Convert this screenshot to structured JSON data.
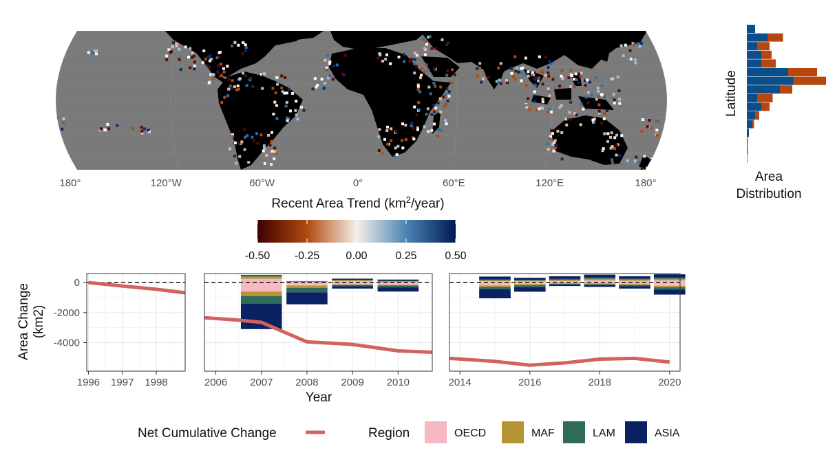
{
  "colors": {
    "ocean": "#7a7a7a",
    "land": "#000000",
    "net_line": "#d2625e",
    "OECD": "#f6b8c3",
    "MAF": "#b59532",
    "LAM": "#2e6b5b",
    "ASIA": "#0b2262",
    "hist_left": "#0b4e8a",
    "hist_right": "#b5470f",
    "panel_grid": "#ebebeb"
  },
  "chart_data": [
    {
      "type": "heatmap",
      "title": "Recent Area Trend (km2/year)",
      "title_main": "Recent Area Trend (km",
      "title_sup": "2",
      "title_end": "/year)",
      "longitude_labels": [
        "180°",
        "120°W",
        "60°W",
        "0°",
        "60°E",
        "120°E",
        "180°"
      ],
      "longitudes": [
        -180,
        -120,
        -60,
        0,
        60,
        120,
        180
      ],
      "colorbar": {
        "range": [
          -0.5,
          0.5
        ],
        "ticks": [
          -0.5,
          -0.25,
          0.0,
          0.25,
          0.5
        ],
        "tick_labels": [
          "-0.50",
          "-0.25",
          "0.00",
          "0.25",
          "0.50"
        ],
        "stops": [
          "#3d0000",
          "#b24a10",
          "#f5efe8",
          "#4b86b3",
          "#001a55"
        ]
      }
    },
    {
      "type": "bar",
      "orientation": "horizontal",
      "xlabel": "Area\nDistribution",
      "xlabel_lines": [
        "Area",
        "Distribution"
      ],
      "ylabel": "Latitude",
      "bins": [
        {
          "a": 0.08,
          "b": 0.0
        },
        {
          "a": 0.2,
          "b": 0.15
        },
        {
          "a": 0.1,
          "b": 0.12
        },
        {
          "a": 0.14,
          "b": 0.1
        },
        {
          "a": 0.14,
          "b": 0.14
        },
        {
          "a": 0.4,
          "b": 0.28
        },
        {
          "a": 0.45,
          "b": 0.4
        },
        {
          "a": 0.32,
          "b": 0.12
        },
        {
          "a": 0.1,
          "b": 0.15
        },
        {
          "a": 0.14,
          "b": 0.08
        },
        {
          "a": 0.08,
          "b": 0.04
        },
        {
          "a": 0.05,
          "b": 0.02
        },
        {
          "a": 0.02,
          "b": 0.0
        },
        {
          "a": 0.0,
          "b": 0.01
        },
        {
          "a": 0.0,
          "b": 0.01
        },
        {
          "a": 0.0,
          "b": 0.005
        }
      ]
    },
    {
      "type": "bar",
      "stacked": true,
      "xlabel": "Year",
      "ylabel": "Area Change\n(km2)",
      "ylabel_lines": [
        "Area Change",
        "(km2)"
      ],
      "ylim": [
        -5900,
        600
      ],
      "y_ticks": [
        0,
        -2000,
        -4000
      ],
      "y_tick_labels": [
        "0",
        "-2000",
        "-4000"
      ],
      "panels": [
        {
          "xlim": [
            1995.95,
            1998.85
          ],
          "x_ticks": [
            1996,
            1997,
            1998
          ],
          "x_tick_labels": [
            "1996",
            "1997",
            "1998"
          ],
          "bars": [],
          "net_line": {
            "x": [
              1996,
              1997,
              1998,
              1998.85
            ],
            "y": [
              0,
              -230,
              -450,
              -680
            ]
          }
        },
        {
          "xlim": [
            2005.75,
            2010.75
          ],
          "x_ticks": [
            2006,
            2007,
            2008,
            2009,
            2010
          ],
          "x_tick_labels": [
            "2006",
            "2007",
            "2008",
            "2009",
            "2010"
          ],
          "bars": [
            {
              "x": 2007,
              "OECD": [
                250,
                -600
              ],
              "MAF": [
                150,
                -300
              ],
              "LAM": [
                80,
                -500
              ],
              "ASIA": [
                30,
                -1700
              ]
            },
            {
              "x": 2008,
              "OECD": [
                40,
                -200
              ],
              "MAF": [
                30,
                -150
              ],
              "LAM": [
                20,
                -300
              ],
              "ASIA": [
                10,
                -800
              ]
            },
            {
              "x": 2009,
              "OECD": [
                100,
                -120
              ],
              "MAF": [
                50,
                -40
              ],
              "LAM": [
                30,
                -80
              ],
              "ASIA": [
                80,
                -160
              ]
            },
            {
              "x": 2010,
              "OECD": [
                50,
                -150
              ],
              "MAF": [
                40,
                -50
              ],
              "LAM": [
                30,
                -120
              ],
              "ASIA": [
                80,
                -280
              ]
            }
          ],
          "net_line": {
            "x": [
              2005.75,
              2006.5,
              2007,
              2008,
              2009,
              2010,
              2010.75
            ],
            "y": [
              -2340,
              -2500,
              -2650,
              -3950,
              -4120,
              -4550,
              -4640
            ]
          }
        },
        {
          "xlim": [
            2013.7,
            2020.3
          ],
          "x_ticks": [
            2014,
            2016,
            2018,
            2020
          ],
          "x_tick_labels": [
            "2014",
            "2016",
            "2018",
            "2020"
          ],
          "bars": [
            {
              "x": 2015,
              "OECD": [
                100,
                -200
              ],
              "MAF": [
                50,
                -100
              ],
              "LAM": [
                50,
                -150
              ],
              "ASIA": [
                200,
                -600
              ]
            },
            {
              "x": 2016,
              "OECD": [
                80,
                -100
              ],
              "MAF": [
                50,
                -80
              ],
              "LAM": [
                50,
                -130
              ],
              "ASIA": [
                140,
                -300
              ]
            },
            {
              "x": 2017,
              "OECD": [
                100,
                -50
              ],
              "MAF": [
                80,
                -40
              ],
              "LAM": [
                60,
                -40
              ],
              "ASIA": [
                180,
                -100
              ]
            },
            {
              "x": 2018,
              "OECD": [
                150,
                -60
              ],
              "MAF": [
                100,
                -50
              ],
              "LAM": [
                80,
                -60
              ],
              "ASIA": [
                200,
                -120
              ]
            },
            {
              "x": 2019,
              "OECD": [
                120,
                -100
              ],
              "MAF": [
                80,
                -60
              ],
              "LAM": [
                60,
                -80
              ],
              "ASIA": [
                160,
                -160
              ]
            },
            {
              "x": 2020,
              "OECD": [
                150,
                -220
              ],
              "MAF": [
                100,
                -100
              ],
              "LAM": [
                80,
                -150
              ],
              "ASIA": [
                220,
                -330
              ]
            }
          ],
          "net_line": {
            "x": [
              2013.7,
              2015,
              2016,
              2017,
              2018,
              2019,
              2020
            ],
            "y": [
              -5050,
              -5250,
              -5500,
              -5350,
              -5100,
              -5050,
              -5300
            ]
          }
        }
      ],
      "legend": {
        "position": "bottom",
        "net_label": "Net Cumulative Change",
        "region_title": "Region",
        "regions": [
          "OECD",
          "MAF",
          "LAM",
          "ASIA"
        ]
      }
    }
  ]
}
